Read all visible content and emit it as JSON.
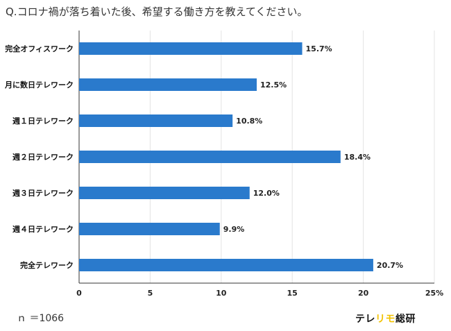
{
  "chart_data": {
    "type": "bar",
    "orientation": "horizontal",
    "title": "Q.コロナ禍が落ち着いた後、希望する働き方を教えてください。",
    "categories": [
      "完全オフィスワーク",
      "月に数日テレワーク",
      "週１日テレワーク",
      "週２日テレワーク",
      "週３日テレワーク",
      "週４日テレワーク",
      "完全テレワーク"
    ],
    "values": [
      15.7,
      12.5,
      10.8,
      18.4,
      12.0,
      9.9,
      20.7
    ],
    "value_labels": [
      "15.7%",
      "12.5%",
      "10.8%",
      "18.4%",
      "12.0%",
      "9.9%",
      "20.7%"
    ],
    "xlim": [
      0,
      25
    ],
    "x_ticks": [
      0,
      5,
      10,
      15,
      20,
      25
    ],
    "x_tick_labels": [
      "0",
      "5",
      "10",
      "15",
      "20",
      "25%"
    ],
    "grid": true,
    "bar_color": "#2a7acc",
    "grid_color": "#e3e3e3"
  },
  "footer": {
    "sample_size": "ｎ ＝1066",
    "brand_part1": "テレ",
    "brand_part2": "リモ",
    "brand_part3": "総研",
    "brand_accent_color": "#f2c200"
  }
}
